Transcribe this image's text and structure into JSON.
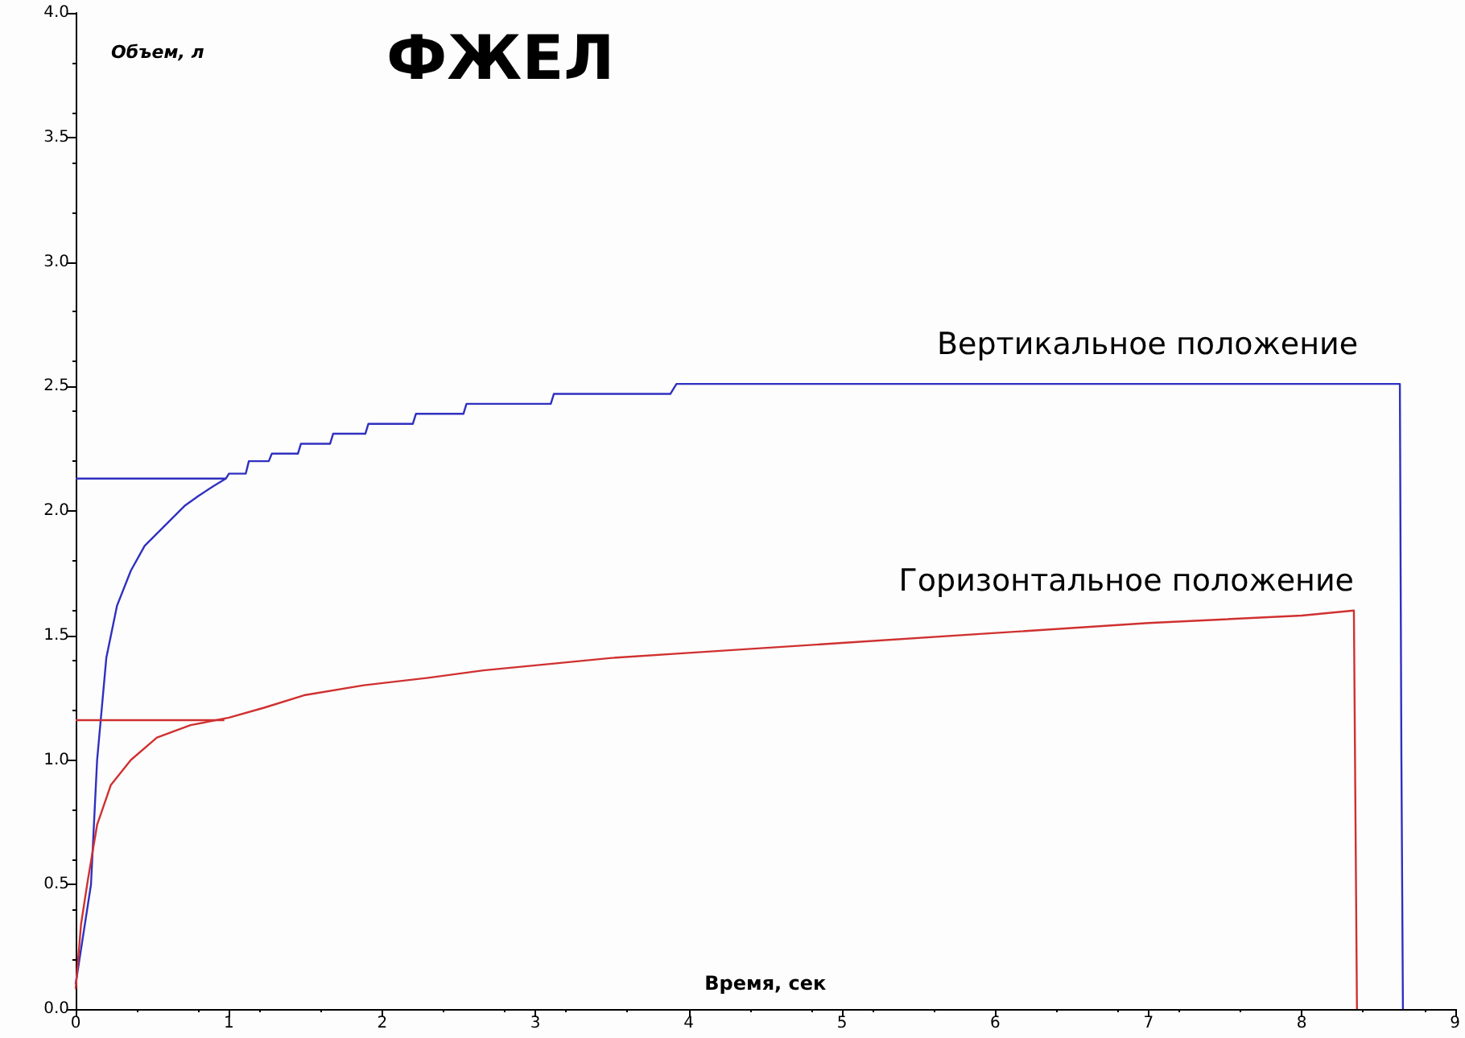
{
  "chart_data": {
    "type": "line",
    "title": "ФЖЕЛ",
    "xlabel": "Время, сек",
    "ylabel": "Объем, л",
    "xlim": [
      0,
      9
    ],
    "xticks": [
      0,
      1,
      2,
      3,
      4,
      5,
      6,
      7,
      8,
      9
    ],
    "ylim": [
      0,
      4
    ],
    "yticks": [
      {
        "value": 0,
        "label": "0.0"
      },
      {
        "value": 0.5,
        "label": "0.5"
      },
      {
        "value": 1,
        "label": "1.0"
      },
      {
        "value": 1.5,
        "label": "1.5"
      },
      {
        "value": 2,
        "label": "2.0"
      },
      {
        "value": 2.5,
        "label": "2.5"
      },
      {
        "value": 3,
        "label": "3.0"
      },
      {
        "value": 3.5,
        "label": "3.5"
      },
      {
        "value": 4,
        "label": "4.0"
      }
    ],
    "grid": false,
    "marker": "none",
    "line_style": "solid",
    "series": [
      {
        "name": "Вертикальное положение",
        "color": "#3030c0",
        "x": [
          0,
          0.05,
          0.1,
          0.14,
          0.2,
          0.27,
          0.36,
          0.45,
          0.58,
          0.71,
          0.8,
          0.9,
          0.98,
          1.0,
          1.11,
          1.13,
          1.26,
          1.28,
          1.45,
          1.47,
          1.66,
          1.68,
          1.89,
          1.91,
          2.2,
          2.22,
          2.53,
          2.55,
          3.1,
          3.12,
          3.88,
          3.92,
          8.64,
          8.65,
          8.66
        ],
        "values": [
          0.1,
          0.3,
          0.5,
          1.0,
          1.41,
          1.62,
          1.76,
          1.86,
          1.94,
          2.02,
          2.06,
          2.1,
          2.13,
          2.15,
          2.15,
          2.2,
          2.2,
          2.23,
          2.23,
          2.27,
          2.27,
          2.31,
          2.31,
          2.35,
          2.35,
          2.39,
          2.39,
          2.43,
          2.43,
          2.47,
          2.47,
          2.51,
          2.51,
          1.0,
          0
        ]
      },
      {
        "name": "Горизонтальное положение",
        "color": "#d03030",
        "x": [
          0,
          0.035,
          0.08,
          0.14,
          0.23,
          0.36,
          0.53,
          0.75,
          1.0,
          1.23,
          1.49,
          1.88,
          2.3,
          2.66,
          3,
          3.5,
          4,
          5,
          6,
          7,
          8,
          8.34,
          8.35,
          8.36
        ],
        "values": [
          0.08,
          0.34,
          0.52,
          0.74,
          0.9,
          1.0,
          1.09,
          1.14,
          1.17,
          1.21,
          1.26,
          1.3,
          1.33,
          1.36,
          1.38,
          1.41,
          1.43,
          1.47,
          1.51,
          1.55,
          1.58,
          1.6,
          0.8,
          0
        ]
      },
      {
        "type": "line",
        "color": "#3030c0",
        "x": [
          0,
          0.98
        ],
        "values": [
          2.13,
          2.13
        ]
      },
      {
        "type": "line",
        "color": "#d03030",
        "x": [
          0,
          0.97
        ],
        "values": [
          1.16,
          1.16
        ]
      }
    ]
  }
}
